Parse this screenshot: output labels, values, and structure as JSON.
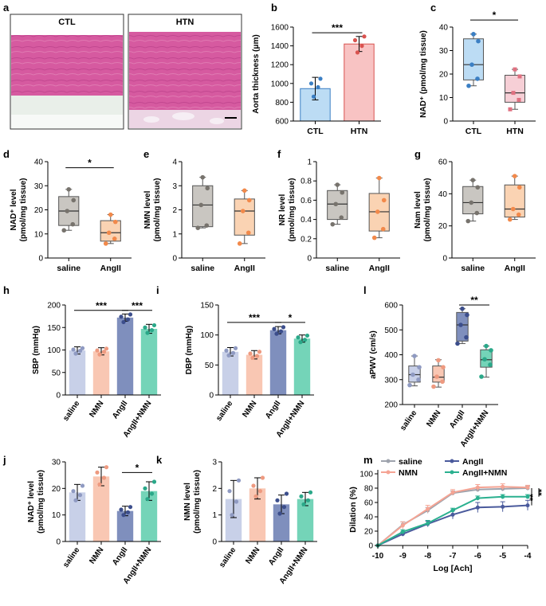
{
  "histology": {
    "panel_label": "a",
    "left_label": "CTL",
    "right_label": "HTN",
    "colors": {
      "tissue": "#d45a9e",
      "tissue_dark": "#b83c84",
      "adventitia": "#dfe8e0",
      "hole": "#f4eef3"
    }
  },
  "colors": {
    "ctl_fill": "#bcdcf4",
    "ctl_stroke": "#3b7fc4",
    "htn_fill": "#f8c3c3",
    "htn_stroke": "#d9534f",
    "box_pink": "#f6cfd6",
    "box_pink_stroke": "#e07080",
    "grey_fill": "#c9c6c1",
    "grey_dot": "#77736d",
    "orange_fill": "#fad3b3",
    "orange_dot": "#f2894a",
    "saline": "#c8d0e8",
    "saline_dot": "#8f9ac2",
    "nmn": "#f9c7b3",
    "nmn_dot": "#ee9a80",
    "angii": "#7f8fbd",
    "angii_dot": "#3c4e8c",
    "combo": "#74d4b8",
    "combo_dot": "#2aa889",
    "line_saline": "#9ea3ad",
    "line_angii": "#4a5a9c",
    "line_nmn": "#f5a494",
    "line_combo": "#2ab08f"
  },
  "chart_data": [
    {
      "id": "b",
      "type": "bar",
      "panel_label": "b",
      "ylabel": "Aorta thickness (μm)",
      "ylim": [
        600,
        1600
      ],
      "yticks": [
        600,
        800,
        1000,
        1200,
        1400,
        1600
      ],
      "categories": [
        "CTL",
        "HTN"
      ],
      "values": [
        945,
        1420
      ],
      "errors": [
        120,
        80
      ],
      "points": [
        [
          860,
          960,
          1000,
          1050
        ],
        [
          1330,
          1400,
          1460,
          1500
        ]
      ],
      "significance": [
        {
          "from": 0,
          "to": 1,
          "label": "***",
          "y": 1540
        }
      ]
    },
    {
      "id": "c",
      "type": "box",
      "panel_label": "c",
      "ylabel": "NAD⁺ (pmol/mg tissue)",
      "ylim": [
        0,
        40
      ],
      "yticks": [
        0,
        10,
        20,
        30,
        40
      ],
      "categories": [
        "CTL",
        "HTN"
      ],
      "boxes": [
        {
          "min": 15,
          "q1": 17.5,
          "median": 24,
          "q3": 35,
          "max": 37,
          "points": [
            15,
            18,
            24,
            34,
            37
          ]
        },
        {
          "min": 5,
          "q1": 8,
          "median": 12,
          "q3": 19.5,
          "max": 22,
          "points": [
            5,
            9,
            12,
            19,
            22
          ]
        }
      ],
      "significance": [
        {
          "from": 0,
          "to": 1,
          "label": "*",
          "y": 43
        }
      ]
    },
    {
      "id": "d",
      "type": "box",
      "panel_label": "d",
      "ylabel_line1": "NAD⁺ level",
      "ylabel_line2": "(pmol/mg tissue)",
      "ylim": [
        0,
        40
      ],
      "yticks": [
        0,
        10,
        20,
        30,
        40
      ],
      "categories": [
        "saline",
        "AngII"
      ],
      "boxes": [
        {
          "min": 11.5,
          "q1": 13.5,
          "median": 19.5,
          "q3": 25.5,
          "max": 28.5,
          "points": [
            11.5,
            14,
            19.5,
            24,
            28.5
          ]
        },
        {
          "min": 6,
          "q1": 7,
          "median": 10.5,
          "q3": 15.5,
          "max": 18,
          "points": [
            6,
            8,
            10.5,
            15,
            18
          ]
        }
      ],
      "significance": [
        {
          "from": 0,
          "to": 1,
          "label": "*",
          "y": 37.5
        }
      ]
    },
    {
      "id": "e",
      "type": "box",
      "panel_label": "e",
      "ylabel_line1": "NMN level",
      "ylabel_line2": "(pmol/mg tissue)",
      "ylim": [
        0,
        4
      ],
      "yticks": [
        0,
        1,
        2,
        3,
        4
      ],
      "categories": [
        "saline",
        "AngII"
      ],
      "boxes": [
        {
          "min": 1.25,
          "q1": 1.3,
          "median": 2.2,
          "q3": 3.0,
          "max": 3.35,
          "points": [
            1.25,
            1.35,
            2.2,
            2.9,
            3.35
          ]
        },
        {
          "min": 0.6,
          "q1": 0.95,
          "median": 1.95,
          "q3": 2.45,
          "max": 2.8,
          "points": [
            0.6,
            1.05,
            1.95,
            2.4,
            2.8
          ]
        }
      ],
      "significance": []
    },
    {
      "id": "f",
      "type": "box",
      "panel_label": "f",
      "ylabel_line1": "NR level",
      "ylabel_line2": "(pmol/mg tissue)",
      "ylim": [
        0,
        1.0
      ],
      "yticks": [
        0,
        0.2,
        0.4,
        0.6,
        0.8,
        1.0
      ],
      "categories": [
        "saline",
        "AngII"
      ],
      "boxes": [
        {
          "min": 0.35,
          "q1": 0.4,
          "median": 0.56,
          "q3": 0.7,
          "max": 0.76,
          "points": [
            0.35,
            0.42,
            0.56,
            0.68,
            0.76
          ]
        },
        {
          "min": 0.21,
          "q1": 0.28,
          "median": 0.48,
          "q3": 0.67,
          "max": 0.83,
          "points": [
            0.21,
            0.3,
            0.48,
            0.6,
            0.83
          ]
        }
      ],
      "significance": []
    },
    {
      "id": "g",
      "type": "box",
      "panel_label": "g",
      "ylabel_line1": "Nam level",
      "ylabel_line2": "(pmol/mg tissue)",
      "ylim": [
        0,
        60
      ],
      "yticks": [
        0,
        20,
        40,
        60
      ],
      "categories": [
        "saline",
        "AngII"
      ],
      "boxes": [
        {
          "min": 23,
          "q1": 27.5,
          "median": 34.5,
          "q3": 44.5,
          "max": 48.5,
          "points": [
            23,
            28,
            34.5,
            44,
            48.5
          ]
        },
        {
          "min": 24,
          "q1": 25.5,
          "median": 30.5,
          "q3": 45.5,
          "max": 51,
          "points": [
            24,
            27,
            30.5,
            44,
            51
          ]
        }
      ],
      "significance": []
    },
    {
      "id": "h",
      "type": "bar",
      "panel_label": "h",
      "ylabel": "SBP (mmHg)",
      "ylim": [
        0,
        200
      ],
      "yticks": [
        0,
        50,
        100,
        150,
        200
      ],
      "categories": [
        "saline",
        "NMN",
        "AngII",
        "AngII+NMN"
      ],
      "values": [
        99,
        97,
        172,
        147
      ],
      "errors": [
        8,
        8,
        8,
        10
      ],
      "points": [
        [
          92,
          98,
          101,
          104
        ],
        [
          90,
          96,
          99,
          103
        ],
        [
          162,
          168,
          174,
          179
        ],
        [
          138,
          144,
          150,
          155
        ]
      ],
      "significance": [
        {
          "from": 0,
          "to": 2,
          "label": "***",
          "y": 188
        },
        {
          "from": 2,
          "to": 3,
          "label": "***",
          "y": 188
        }
      ]
    },
    {
      "id": "i",
      "type": "bar",
      "panel_label": "i",
      "ylabel": "DBP (mmHg)",
      "ylim": [
        0,
        150
      ],
      "yticks": [
        0,
        50,
        100,
        150
      ],
      "categories": [
        "saline",
        "NMN",
        "AngII",
        "AngII+NMN"
      ],
      "values": [
        72,
        67,
        108,
        94
      ],
      "errors": [
        7,
        7,
        6,
        6
      ],
      "points": [
        [
          66,
          70,
          74,
          78
        ],
        [
          62,
          65,
          69,
          72
        ],
        [
          102,
          106,
          110,
          113
        ],
        [
          88,
          92,
          96,
          99
        ]
      ],
      "significance": [
        {
          "from": 0,
          "to": 2,
          "label": "***",
          "y": 121
        },
        {
          "from": 2,
          "to": 3,
          "label": "*",
          "y": 121
        }
      ]
    },
    {
      "id": "l",
      "type": "box",
      "panel_label": "l",
      "ylabel": "aPWV (cm/s)",
      "ylim": [
        200,
        600
      ],
      "yticks": [
        200,
        300,
        400,
        500,
        600
      ],
      "categories": [
        "saline",
        "NMN",
        "AngII",
        "AngII+NMN"
      ],
      "boxes": [
        {
          "min": 275,
          "q1": 290,
          "median": 320,
          "q3": 355,
          "max": 395,
          "points": [
            278,
            300,
            320,
            350,
            395
          ]
        },
        {
          "min": 270,
          "q1": 290,
          "median": 310,
          "q3": 355,
          "max": 380,
          "points": [
            272,
            292,
            312,
            350,
            378
          ]
        },
        {
          "min": 445,
          "q1": 455,
          "median": 520,
          "q3": 570,
          "max": 585,
          "points": [
            445,
            470,
            520,
            560,
            585
          ]
        },
        {
          "min": 310,
          "q1": 350,
          "median": 380,
          "q3": 420,
          "max": 435,
          "points": [
            312,
            360,
            382,
            418,
            435
          ]
        }
      ],
      "significance": [
        {
          "from": 2,
          "to": 3,
          "label": "**",
          "y": 600
        }
      ]
    },
    {
      "id": "j",
      "type": "bar",
      "panel_label": "j",
      "ylabel_line1": "NAD⁺ level",
      "ylabel_line2": "(pmol/mg tissue)",
      "ylim": [
        0,
        30
      ],
      "yticks": [
        0,
        10,
        20,
        30
      ],
      "categories": [
        "saline",
        "NMN",
        "AngII",
        "AngII+NMN"
      ],
      "values": [
        18.5,
        24.5,
        11.5,
        19
      ],
      "errors": [
        3,
        3.5,
        1.8,
        3.5
      ],
      "points": [
        [
          15.5,
          17.5,
          19,
          21
        ],
        [
          21.5,
          24,
          26,
          28
        ],
        [
          10,
          11,
          12,
          13
        ],
        [
          16,
          18,
          20,
          22.5
        ]
      ],
      "significance": [
        {
          "from": 2,
          "to": 3,
          "label": "*",
          "y": 26
        }
      ]
    },
    {
      "id": "k",
      "type": "bar",
      "panel_label": "k",
      "ylabel_line1": "NMN level",
      "ylabel_line2": "(pmol/mg tissue)",
      "ylim": [
        0,
        3
      ],
      "yticks": [
        0,
        1,
        2,
        3
      ],
      "categories": [
        "saline",
        "NMN",
        "AngII",
        "AngII+NMN"
      ],
      "values": [
        1.6,
        2.0,
        1.4,
        1.6
      ],
      "errors": [
        0.7,
        0.4,
        0.35,
        0.25
      ],
      "points": [
        [
          1.0,
          1.5,
          1.9,
          2.3
        ],
        [
          1.7,
          1.9,
          2.1,
          2.4
        ],
        [
          1.05,
          1.3,
          1.55,
          1.8
        ],
        [
          1.4,
          1.55,
          1.7,
          1.85
        ]
      ],
      "significance": []
    },
    {
      "id": "m",
      "type": "line",
      "panel_label": "m",
      "xlabel": "Log [Ach]",
      "ylabel": "Dilation (%)",
      "xlim": [
        -10,
        -4
      ],
      "ylim": [
        0,
        100
      ],
      "xticks": [
        -10,
        -9,
        -8,
        -7,
        -6,
        -5,
        -4
      ],
      "yticks": [
        0,
        20,
        40,
        60,
        80,
        100
      ],
      "x": [
        -10,
        -9,
        -8,
        -7,
        -6,
        -5,
        -4
      ],
      "series": [
        {
          "name": "saline",
          "values": [
            0,
            29,
            49,
            73,
            78,
            79,
            80
          ],
          "errors": [
            0,
            4,
            4,
            3,
            3,
            3,
            3
          ]
        },
        {
          "name": "NMN",
          "values": [
            0,
            28,
            51,
            74,
            81,
            82,
            81
          ],
          "errors": [
            0,
            5,
            5,
            4,
            4,
            4,
            3
          ]
        },
        {
          "name": "AngII",
          "values": [
            0,
            16,
            30,
            43,
            53,
            54,
            56
          ],
          "errors": [
            0,
            3,
            4,
            6,
            7,
            7,
            7
          ]
        },
        {
          "name": "AngII+NMN",
          "values": [
            0,
            19,
            31,
            49,
            66,
            68,
            68
          ],
          "errors": [
            0,
            3,
            4,
            3,
            3,
            3,
            3
          ]
        }
      ],
      "significance": [
        "**",
        "**"
      ]
    }
  ]
}
